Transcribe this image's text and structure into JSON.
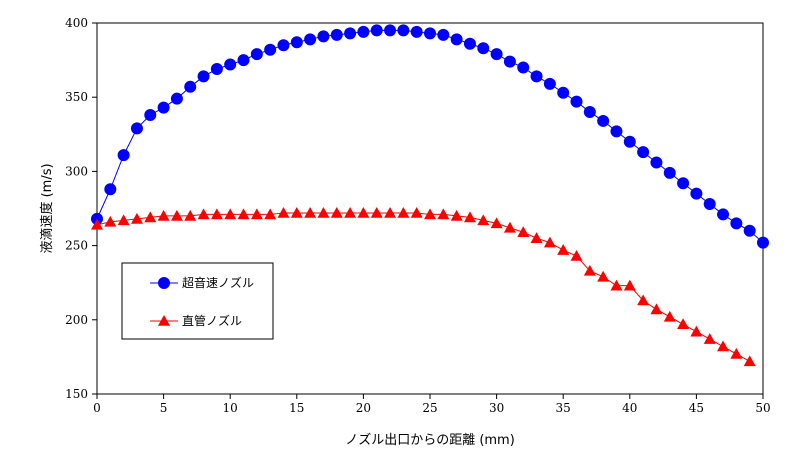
{
  "chart_data": {
    "type": "line",
    "title": "",
    "xlabel": "ノズル出口からの距離 (mm)",
    "ylabel": "液滴速度 (m/s)",
    "xlim": [
      0,
      50
    ],
    "ylim": [
      150,
      400
    ],
    "xticks": [
      0,
      5,
      10,
      15,
      20,
      25,
      30,
      35,
      40,
      45,
      50
    ],
    "yticks": [
      150,
      200,
      250,
      300,
      350,
      400
    ],
    "grid": false,
    "legend": "left-middle",
    "series": [
      {
        "name": "超音速ノズル",
        "color": "#0000ff",
        "marker": "circle",
        "x": [
          0,
          1,
          2,
          3,
          4,
          5,
          6,
          7,
          8,
          9,
          10,
          11,
          12,
          13,
          14,
          15,
          16,
          17,
          18,
          19,
          20,
          21,
          22,
          23,
          24,
          25,
          26,
          27,
          28,
          29,
          30,
          31,
          32,
          33,
          34,
          35,
          36,
          37,
          38,
          39,
          40,
          41,
          42,
          43,
          44,
          45,
          46,
          47,
          48,
          49,
          50
        ],
        "values": [
          268,
          288,
          311,
          329,
          338,
          343,
          349,
          357,
          364,
          369,
          372,
          375,
          379,
          382,
          385,
          387,
          389,
          391,
          392,
          393,
          394,
          395,
          395,
          395,
          394,
          393,
          392,
          389,
          386,
          383,
          379,
          374,
          370,
          364,
          359,
          353,
          347,
          340,
          334,
          327,
          320,
          313,
          306,
          299,
          292,
          285,
          278,
          271,
          265,
          260,
          252
        ]
      },
      {
        "name": "直管ノズル",
        "color": "#ff0000",
        "marker": "triangle",
        "x": [
          0,
          1,
          2,
          3,
          4,
          5,
          6,
          7,
          8,
          9,
          10,
          11,
          12,
          13,
          14,
          15,
          16,
          17,
          18,
          19,
          20,
          21,
          22,
          23,
          24,
          25,
          26,
          27,
          28,
          29,
          30,
          31,
          32,
          33,
          34,
          35,
          36,
          37,
          38,
          39,
          40,
          41,
          42,
          43,
          44,
          45,
          46,
          47,
          48,
          49
        ],
        "values": [
          264,
          266,
          267,
          268,
          269,
          270,
          270,
          270,
          271,
          271,
          271,
          271,
          271,
          271,
          272,
          272,
          272,
          272,
          272,
          272,
          272,
          272,
          272,
          272,
          272,
          271,
          271,
          270,
          269,
          267,
          265,
          262,
          259,
          255,
          252,
          247,
          243,
          233,
          229,
          223,
          223,
          213,
          207,
          202,
          197,
          192,
          187,
          182,
          177,
          172
        ]
      }
    ]
  }
}
